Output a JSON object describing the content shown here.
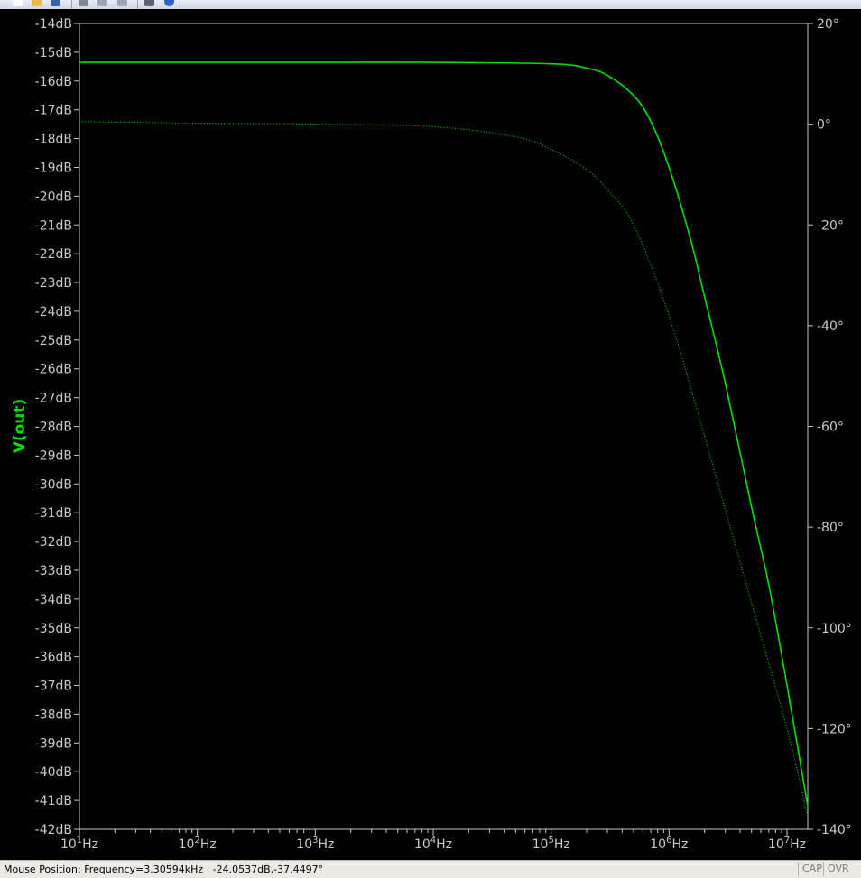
{
  "toolbar": {
    "buttons": [
      {
        "icon": "new-file-icon",
        "color": "#ffffff"
      },
      {
        "icon": "open-folder-icon",
        "color": "#e8b84a"
      },
      {
        "icon": "save-icon",
        "color": "#3b5fa8"
      },
      {
        "icon": "cut-icon",
        "color": "#7d8796"
      },
      {
        "icon": "copy-icon",
        "color": "#9aa6b8"
      },
      {
        "icon": "paste-icon",
        "color": "#9aa6b8"
      },
      {
        "icon": "print-icon",
        "color": "#5a6270"
      },
      {
        "icon": "help-icon",
        "color": "#2e63c9"
      }
    ]
  },
  "chart_data": {
    "type": "line",
    "xscale": "log",
    "xlim": [
      10,
      15000000
    ],
    "x_ticks": [
      {
        "value": 10,
        "base": "10",
        "exp": "1",
        "unit": "Hz"
      },
      {
        "value": 100,
        "base": "10",
        "exp": "2",
        "unit": "Hz"
      },
      {
        "value": 1000,
        "base": "10",
        "exp": "3",
        "unit": "Hz"
      },
      {
        "value": 10000,
        "base": "10",
        "exp": "4",
        "unit": "Hz"
      },
      {
        "value": 100000,
        "base": "10",
        "exp": "5",
        "unit": "Hz"
      },
      {
        "value": 1000000,
        "base": "10",
        "exp": "6",
        "unit": "Hz"
      },
      {
        "value": 10000000,
        "base": "10",
        "exp": "7",
        "unit": "Hz"
      }
    ],
    "ylabel": "V(out)",
    "ylim": [
      -42,
      -14
    ],
    "y_ticks": [
      "-14dB",
      "-15dB",
      "-16dB",
      "-17dB",
      "-18dB",
      "-19dB",
      "-20dB",
      "-21dB",
      "-22dB",
      "-23dB",
      "-24dB",
      "-25dB",
      "-26dB",
      "-27dB",
      "-28dB",
      "-29dB",
      "-30dB",
      "-31dB",
      "-32dB",
      "-33dB",
      "-34dB",
      "-35dB",
      "-36dB",
      "-37dB",
      "-38dB",
      "-39dB",
      "-40dB",
      "-41dB",
      "-42dB"
    ],
    "y_tick_values": [
      -14,
      -15,
      -16,
      -17,
      -18,
      -19,
      -20,
      -21,
      -22,
      -23,
      -24,
      -25,
      -26,
      -27,
      -28,
      -29,
      -30,
      -31,
      -32,
      -33,
      -34,
      -35,
      -36,
      -37,
      -38,
      -39,
      -40,
      -41,
      -42
    ],
    "y2lim": [
      -140,
      20
    ],
    "y2_ticks": [
      "20°",
      "0°",
      "-20°",
      "-40°",
      "-60°",
      "-80°",
      "-100°",
      "-120°",
      "-140°"
    ],
    "y2_tick_values": [
      20,
      0,
      -20,
      -40,
      -60,
      -80,
      -100,
      -120,
      -140
    ],
    "grid": false,
    "series": [
      {
        "style": "solid",
        "axis": "left",
        "color": "#00e000",
        "x": [
          10,
          100,
          1000,
          10000,
          100000,
          200000,
          300000,
          500000,
          700000,
          1000000,
          1500000,
          2000000,
          3000000,
          5000000,
          7000000,
          10000000,
          15000000
        ],
        "y": [
          -15.35,
          -15.35,
          -15.35,
          -15.35,
          -15.4,
          -15.55,
          -15.8,
          -16.5,
          -17.4,
          -19.0,
          -21.4,
          -23.5,
          -26.5,
          -30.8,
          -33.5,
          -37.0,
          -41.2
        ]
      },
      {
        "style": "dotted",
        "axis": "right",
        "color": "#00c800",
        "x": [
          10,
          100,
          1000,
          10000,
          50000,
          100000,
          200000,
          300000,
          500000,
          1000000,
          2000000,
          5000000,
          10000000,
          15000000
        ],
        "y": [
          0.5,
          0.2,
          0.0,
          -0.5,
          -2.5,
          -5.0,
          -9.0,
          -13.0,
          -20.0,
          -38.0,
          -62.0,
          -95.0,
          -120.0,
          -137.5
        ]
      }
    ]
  },
  "status": {
    "text": "Mouse Position: Frequency=3.30594kHz   -24.0537dB,-37.4497°",
    "cap": "CAP",
    "ovr": "OVR"
  }
}
